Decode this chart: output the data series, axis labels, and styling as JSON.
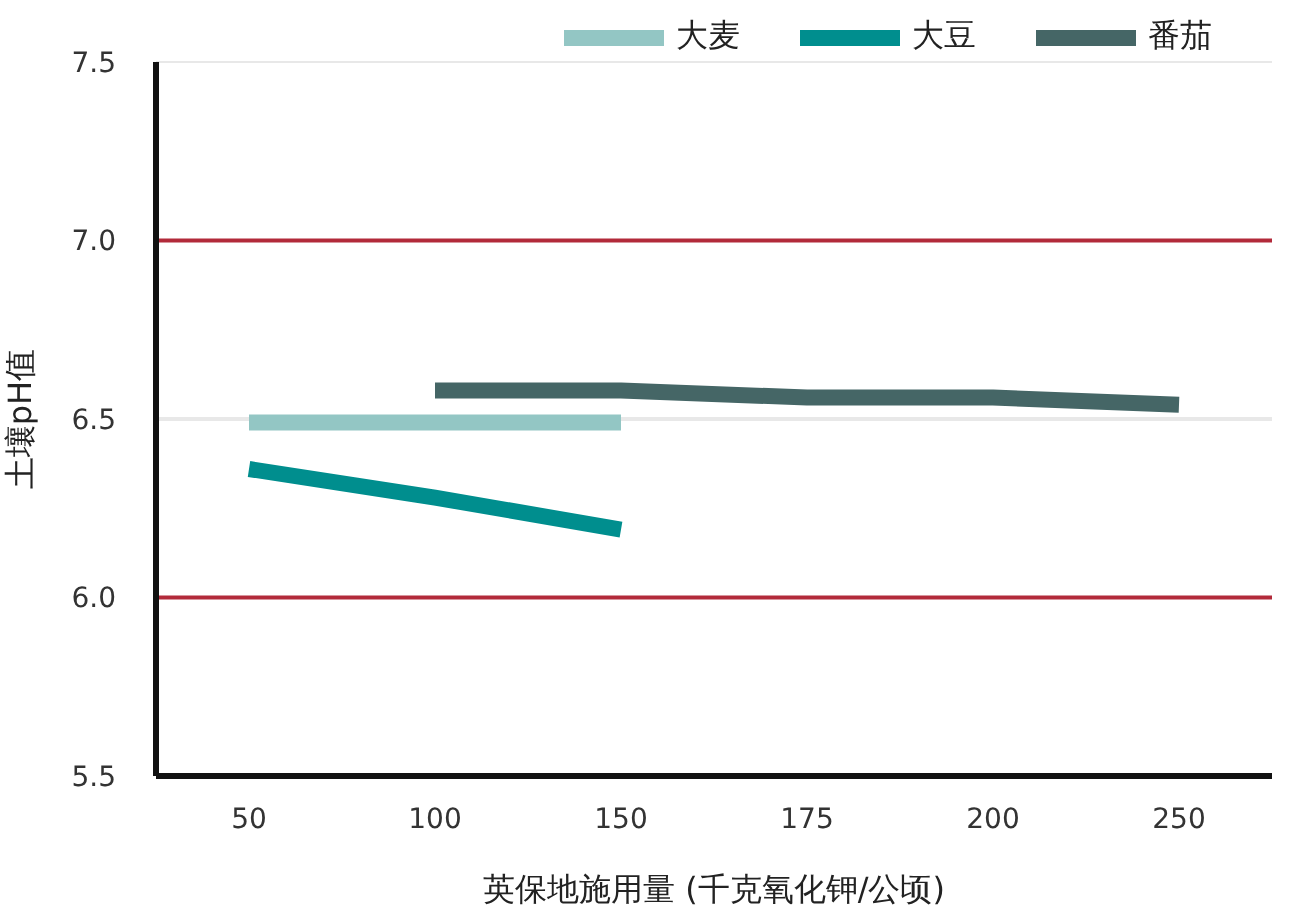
{
  "chart_data": {
    "type": "line",
    "xlabel": "英保地施用量 (千克氧化钾/公顷)",
    "ylabel": "土壤pH值",
    "categories": [
      "50",
      "100",
      "150",
      "175",
      "200",
      "250"
    ],
    "series": [
      {
        "name": "大麦",
        "color": "#93c6c4",
        "values": [
          6.49,
          6.49,
          6.49,
          null,
          null,
          null
        ]
      },
      {
        "name": "大豆",
        "color": "#008e8e",
        "values": [
          6.36,
          6.28,
          6.19,
          null,
          null,
          null
        ]
      },
      {
        "name": "番茄",
        "color": "#456666",
        "values": [
          null,
          6.58,
          6.58,
          6.56,
          6.56,
          6.54
        ]
      }
    ],
    "ylim": [
      5.5,
      7.5
    ],
    "yticks": [
      {
        "value": 5.5,
        "label": "5.5"
      },
      {
        "value": 6,
        "label": "6.0"
      },
      {
        "value": 6.5,
        "label": "6.5"
      },
      {
        "value": 7,
        "label": "7.0"
      },
      {
        "value": 7.5,
        "label": "7.5"
      }
    ],
    "ref_lines": [
      {
        "axis": "y",
        "value": 6,
        "color": "#b22a3a"
      },
      {
        "axis": "y",
        "value": 7,
        "color": "#b22a3a"
      },
      {
        "axis": "y",
        "value": 6.5,
        "color": "#e8e8e8"
      },
      {
        "axis": "y",
        "value": 7.5,
        "color": "#e8e8e8"
      }
    ],
    "legend": "top right",
    "marker": "none",
    "line_style": "solid"
  }
}
